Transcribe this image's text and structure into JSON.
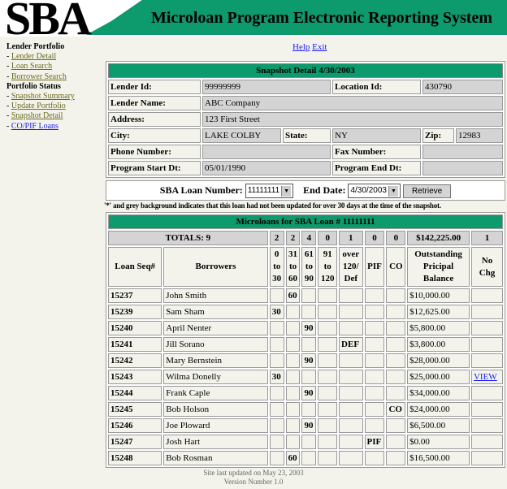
{
  "header": {
    "logo": "SBA",
    "title": "Microloan Program Electronic Reporting System"
  },
  "sidebar": {
    "section1": "Lender Portfolio",
    "items1": [
      "Lender Detail",
      "Loan Search",
      "Borrower Search"
    ],
    "section2": "Portfolio Status",
    "items2": [
      "Snapshot Summary",
      "Update Portfolio",
      "Snapshot Detail",
      "CO/PIF Loans"
    ]
  },
  "toplinks": {
    "help": "Help",
    "exit": "Exit"
  },
  "snapshot": {
    "title": "Snapshot Detail 4/30/2003",
    "lender_id_label": "Lender Id:",
    "lender_id": "99999999",
    "location_id_label": "Location Id:",
    "location_id": "430790",
    "lender_name_label": "Lender Name:",
    "lender_name": "ABC Company",
    "address_label": "Address:",
    "address": "123 First Street",
    "city_label": "City:",
    "city": "LAKE COLBY",
    "state_label": "State:",
    "state": "NY",
    "zip_label": "Zip:",
    "zip": "12983",
    "phone_label": "Phone Number:",
    "phone": "",
    "fax_label": "Fax Number:",
    "fax": "",
    "start_label": "Program Start Dt:",
    "start": "05/01/1990",
    "end_label": "Program End Dt:",
    "end": ""
  },
  "form": {
    "loan_label": "SBA Loan Number:",
    "loan_value": "11111111",
    "end_label": "End Date:",
    "end_value": "4/30/2003",
    "retrieve": "Retrieve"
  },
  "note": "'*' and grey background indicates that this loan had not been updated for over 30 days at the time of the snapshot.",
  "loans": {
    "title": "Microloans for SBA Loan # 11111111",
    "totals": [
      "TOTALS: 9",
      "2",
      "2",
      "4",
      "0",
      "1",
      "0",
      "0",
      "$142,225.00",
      "1"
    ],
    "headers": [
      "Loan Seq#",
      "Borrowers",
      "0 to 30",
      "31 to 60",
      "61 to 90",
      "91 to 120",
      "over 120/ Def",
      "PIF",
      "CO",
      "Outstanding Pricipal Balance",
      "No Chg"
    ],
    "rows": [
      [
        "15237",
        "John Smith",
        "",
        "60",
        "",
        "",
        "",
        "",
        "",
        "$10,000.00",
        ""
      ],
      [
        "15239",
        "Sam Sham",
        "30",
        "",
        "",
        "",
        "",
        "",
        "",
        "$12,625.00",
        ""
      ],
      [
        "15240",
        "April Nenter",
        "",
        "",
        "90",
        "",
        "",
        "",
        "",
        "$5,800.00",
        ""
      ],
      [
        "15241",
        "Jill Sorano",
        "",
        "",
        "",
        "",
        "DEF",
        "",
        "",
        "$3,800.00",
        ""
      ],
      [
        "15242",
        "Mary Bernstein",
        "",
        "",
        "90",
        "",
        "",
        "",
        "",
        "$28,000.00",
        ""
      ],
      [
        "15243",
        "Wilma Donelly",
        "30",
        "",
        "",
        "",
        "",
        "",
        "",
        "$25,000.00",
        "VIEW"
      ],
      [
        "15244",
        "Frank Caple",
        "",
        "",
        "90",
        "",
        "",
        "",
        "",
        "$34,000.00",
        ""
      ],
      [
        "15245",
        "Bob Holson",
        "",
        "",
        "",
        "",
        "",
        "",
        "CO",
        "$24,000.00",
        ""
      ],
      [
        "15246",
        "Joe Ploward",
        "",
        "",
        "90",
        "",
        "",
        "",
        "",
        "$6,500.00",
        ""
      ],
      [
        "15247",
        "Josh Hart",
        "",
        "",
        "",
        "",
        "",
        "PIF",
        "",
        "$0.00",
        ""
      ],
      [
        "15248",
        "Bob Rosman",
        "",
        "60",
        "",
        "",
        "",
        "",
        "",
        "$16,500.00",
        ""
      ]
    ]
  },
  "footer": {
    "updated": "Site last updated on May 23, 2003",
    "version": "Version Number 1.0"
  },
  "colors": {
    "banner": "#0d9a6c",
    "link": "#1a1aee",
    "visited": "#6b6b1e"
  }
}
